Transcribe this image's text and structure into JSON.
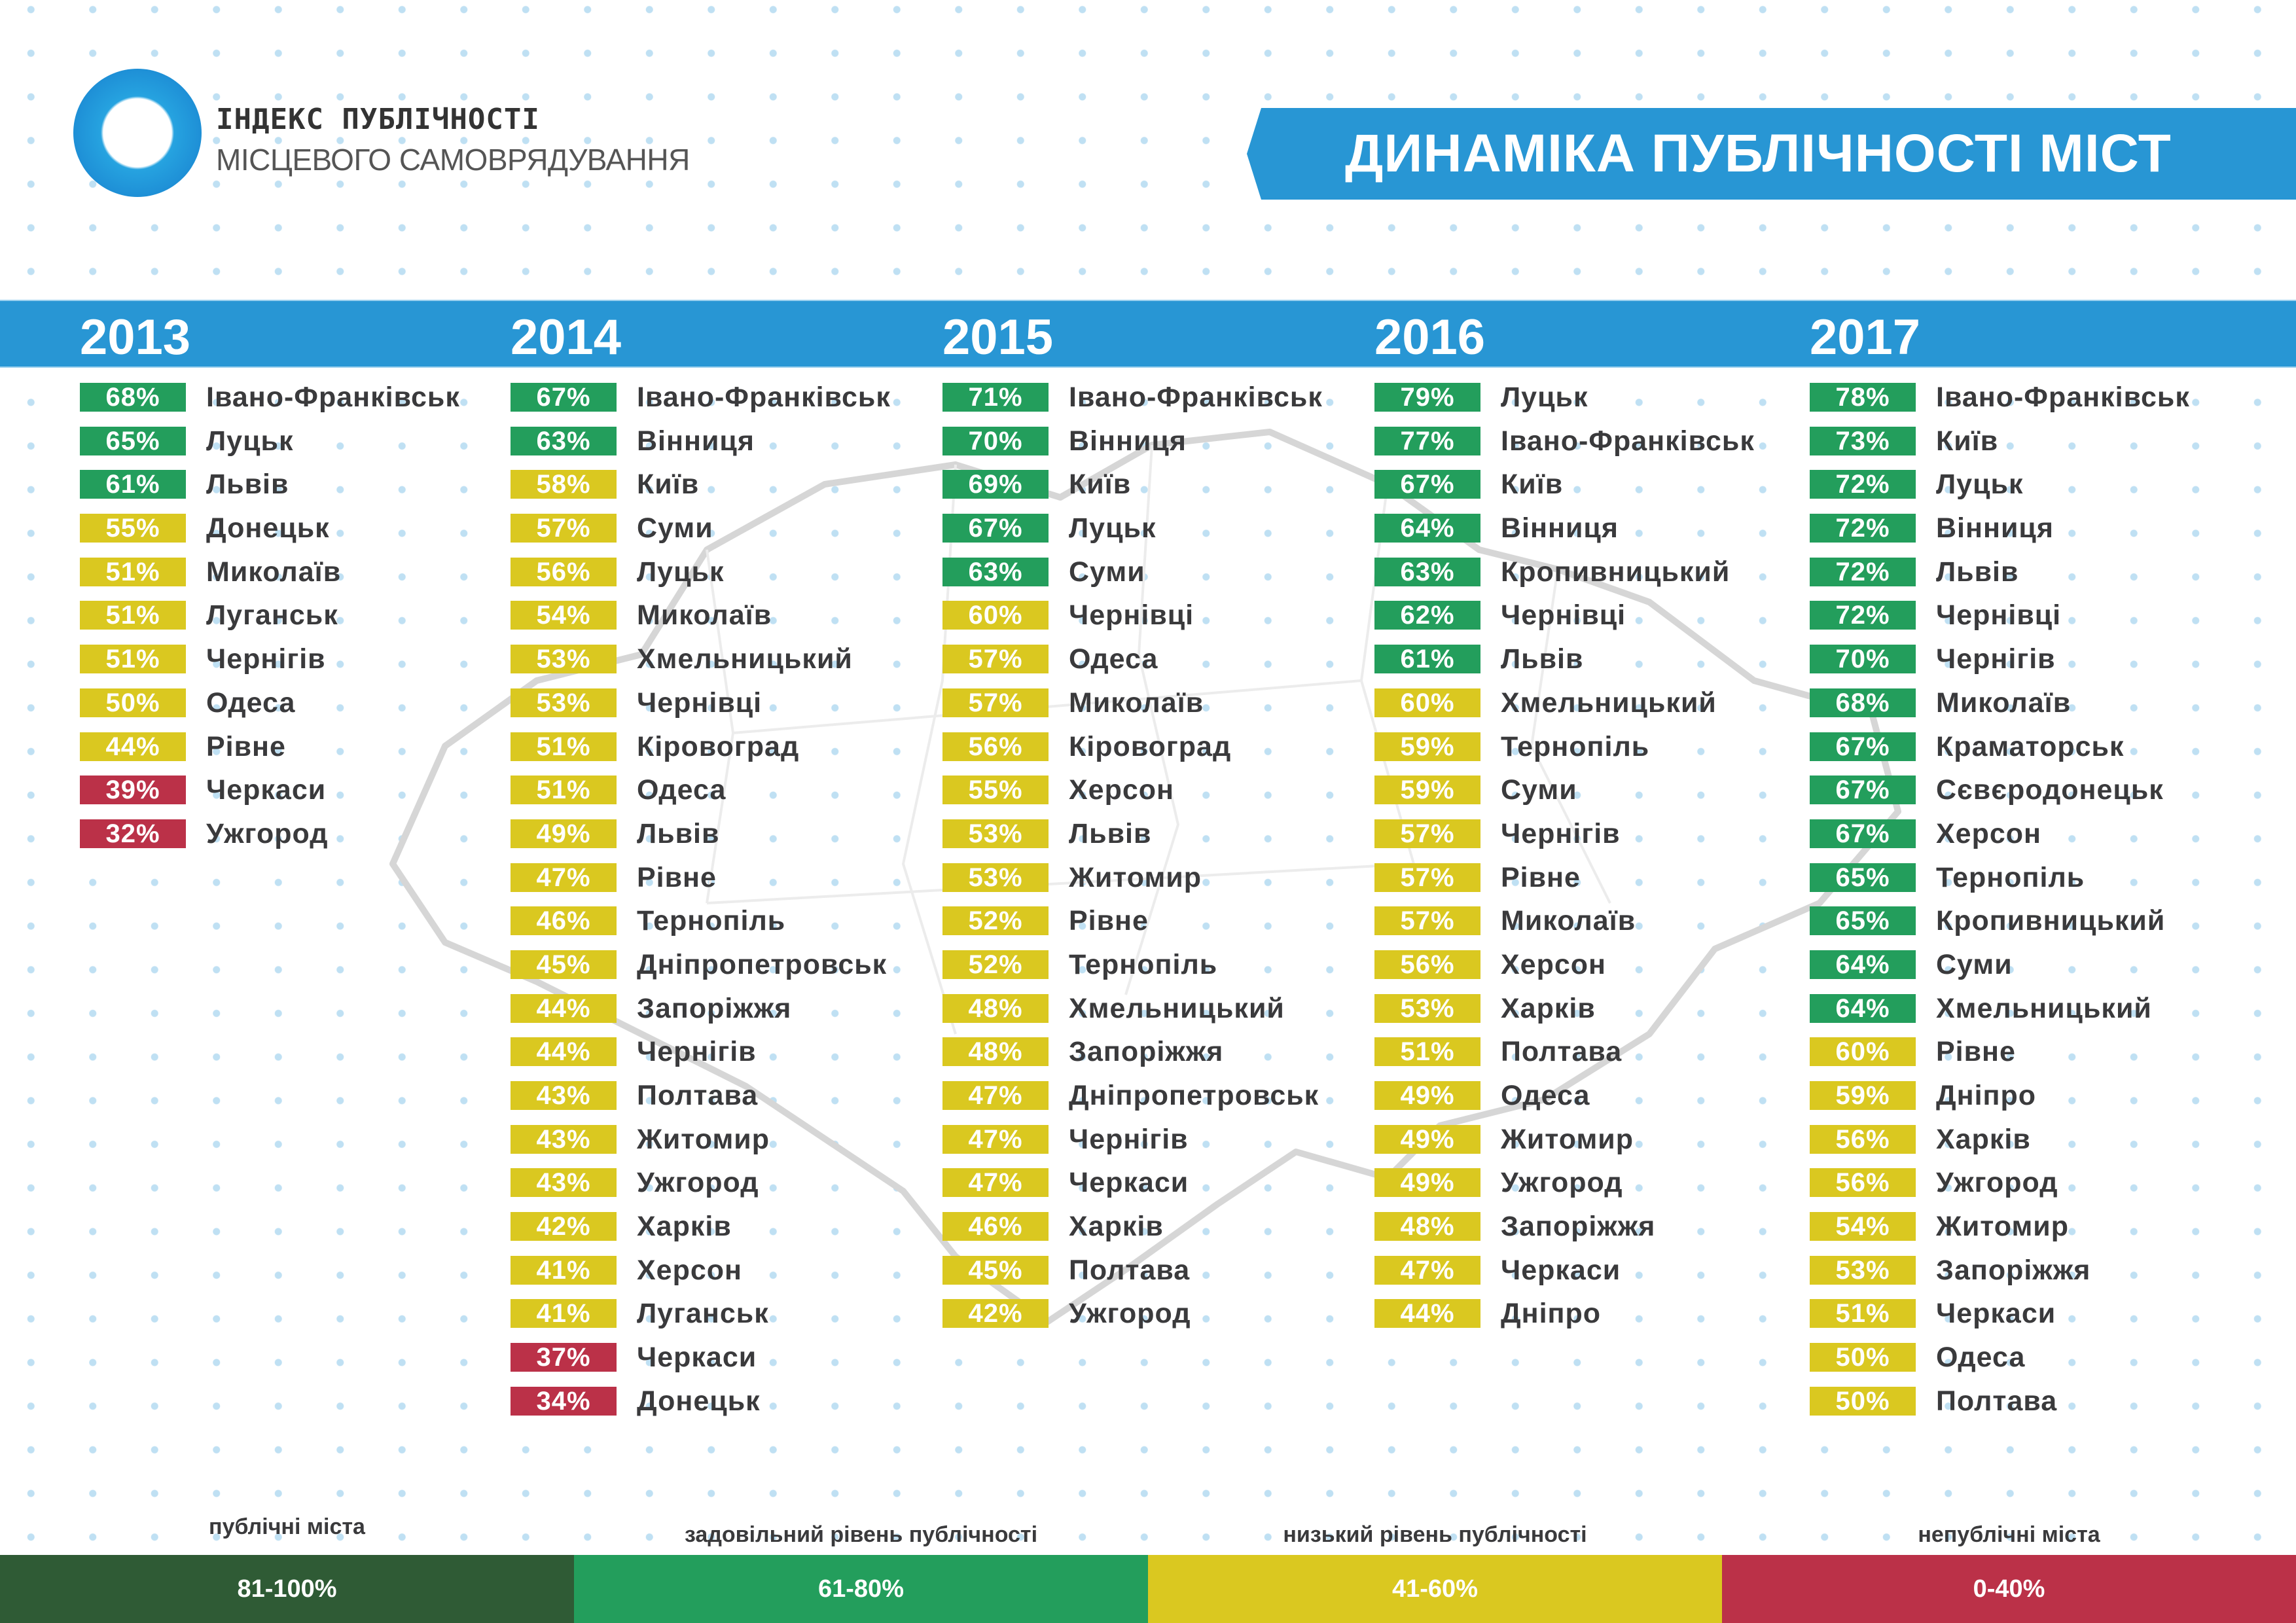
{
  "header": {
    "logo_title": "ІНДЕКС ПУБЛІЧНОСТІ",
    "logo_subtitle": "МІСЦЕВОГО САМОВРЯДУВАННЯ",
    "page_title": "ДИНАМІКА ПУБЛІЧНОСТІ МІСТ"
  },
  "colors": {
    "brand_blue": "#2896d4",
    "public": "#2f5b35",
    "satisfactory": "#239e5c",
    "low": "#dac820",
    "non_public": "#bb3148",
    "text": "#3a3a3c"
  },
  "years": [
    {
      "year": "2013",
      "rows": [
        {
          "pct": "68%",
          "city": "Івано-Франківськ",
          "level": "g"
        },
        {
          "pct": "65%",
          "city": "Луцьк",
          "level": "g"
        },
        {
          "pct": "61%",
          "city": "Львів",
          "level": "g"
        },
        {
          "pct": "55%",
          "city": "Донецьк",
          "level": "y"
        },
        {
          "pct": "51%",
          "city": "Миколаїв",
          "level": "y"
        },
        {
          "pct": "51%",
          "city": "Луганськ",
          "level": "y"
        },
        {
          "pct": "51%",
          "city": "Чернігів",
          "level": "y"
        },
        {
          "pct": "50%",
          "city": "Одеса",
          "level": "y"
        },
        {
          "pct": "44%",
          "city": "Рівне",
          "level": "y"
        },
        {
          "pct": "39%",
          "city": "Черкаси",
          "level": "r"
        },
        {
          "pct": "32%",
          "city": "Ужгород",
          "level": "r"
        }
      ]
    },
    {
      "year": "2014",
      "rows": [
        {
          "pct": "67%",
          "city": "Івано-Франківськ",
          "level": "g"
        },
        {
          "pct": "63%",
          "city": "Вінниця",
          "level": "g"
        },
        {
          "pct": "58%",
          "city": "Київ",
          "level": "y"
        },
        {
          "pct": "57%",
          "city": "Суми",
          "level": "y"
        },
        {
          "pct": "56%",
          "city": "Луцьк",
          "level": "y"
        },
        {
          "pct": "54%",
          "city": "Миколаїв",
          "level": "y"
        },
        {
          "pct": "53%",
          "city": "Хмельницький",
          "level": "y"
        },
        {
          "pct": "53%",
          "city": "Чернівці",
          "level": "y"
        },
        {
          "pct": "51%",
          "city": "Кіровоград",
          "level": "y"
        },
        {
          "pct": "51%",
          "city": "Одеса",
          "level": "y"
        },
        {
          "pct": "49%",
          "city": "Львів",
          "level": "y"
        },
        {
          "pct": "47%",
          "city": "Рівне",
          "level": "y"
        },
        {
          "pct": "46%",
          "city": "Тернопіль",
          "level": "y"
        },
        {
          "pct": "45%",
          "city": "Дніпропетровськ",
          "level": "y"
        },
        {
          "pct": "44%",
          "city": "Запоріжжя",
          "level": "y"
        },
        {
          "pct": "44%",
          "city": "Чернігів",
          "level": "y"
        },
        {
          "pct": "43%",
          "city": "Полтава",
          "level": "y"
        },
        {
          "pct": "43%",
          "city": "Житомир",
          "level": "y"
        },
        {
          "pct": "43%",
          "city": "Ужгород",
          "level": "y"
        },
        {
          "pct": "42%",
          "city": "Харків",
          "level": "y"
        },
        {
          "pct": "41%",
          "city": "Херсон",
          "level": "y"
        },
        {
          "pct": "41%",
          "city": "Луганськ",
          "level": "y"
        },
        {
          "pct": "37%",
          "city": "Черкаси",
          "level": "r"
        },
        {
          "pct": "34%",
          "city": "Донецьк",
          "level": "r"
        }
      ]
    },
    {
      "year": "2015",
      "rows": [
        {
          "pct": "71%",
          "city": "Івано-Франківськ",
          "level": "g"
        },
        {
          "pct": "70%",
          "city": "Вінниця",
          "level": "g"
        },
        {
          "pct": "69%",
          "city": "Київ",
          "level": "g"
        },
        {
          "pct": "67%",
          "city": "Луцьк",
          "level": "g"
        },
        {
          "pct": "63%",
          "city": "Суми",
          "level": "g"
        },
        {
          "pct": "60%",
          "city": "Чернівці",
          "level": "y"
        },
        {
          "pct": "57%",
          "city": "Одеса",
          "level": "y"
        },
        {
          "pct": "57%",
          "city": "Миколаїв",
          "level": "y"
        },
        {
          "pct": "56%",
          "city": "Кіровоград",
          "level": "y"
        },
        {
          "pct": "55%",
          "city": "Херсон",
          "level": "y"
        },
        {
          "pct": "53%",
          "city": "Львів",
          "level": "y"
        },
        {
          "pct": "53%",
          "city": "Житомир",
          "level": "y"
        },
        {
          "pct": "52%",
          "city": "Рівне",
          "level": "y"
        },
        {
          "pct": "52%",
          "city": "Тернопіль",
          "level": "y"
        },
        {
          "pct": "48%",
          "city": "Хмельницький",
          "level": "y"
        },
        {
          "pct": "48%",
          "city": "Запоріжжя",
          "level": "y"
        },
        {
          "pct": "47%",
          "city": "Дніпропетровськ",
          "level": "y"
        },
        {
          "pct": "47%",
          "city": "Чернігів",
          "level": "y"
        },
        {
          "pct": "47%",
          "city": "Черкаси",
          "level": "y"
        },
        {
          "pct": "46%",
          "city": "Харків",
          "level": "y"
        },
        {
          "pct": "45%",
          "city": "Полтава",
          "level": "y"
        },
        {
          "pct": "42%",
          "city": "Ужгород",
          "level": "y"
        }
      ]
    },
    {
      "year": "2016",
      "rows": [
        {
          "pct": "79%",
          "city": "Луцьк",
          "level": "g"
        },
        {
          "pct": "77%",
          "city": "Івано-Франківськ",
          "level": "g"
        },
        {
          "pct": "67%",
          "city": "Київ",
          "level": "g"
        },
        {
          "pct": "64%",
          "city": "Вінниця",
          "level": "g"
        },
        {
          "pct": "63%",
          "city": "Кропивницький",
          "level": "g"
        },
        {
          "pct": "62%",
          "city": "Чернівці",
          "level": "g"
        },
        {
          "pct": "61%",
          "city": "Львів",
          "level": "g"
        },
        {
          "pct": "60%",
          "city": "Хмельницький",
          "level": "y"
        },
        {
          "pct": "59%",
          "city": "Тернопіль",
          "level": "y"
        },
        {
          "pct": "59%",
          "city": "Суми",
          "level": "y"
        },
        {
          "pct": "57%",
          "city": "Чернігів",
          "level": "y"
        },
        {
          "pct": "57%",
          "city": "Рівне",
          "level": "y"
        },
        {
          "pct": "57%",
          "city": "Миколаїв",
          "level": "y"
        },
        {
          "pct": "56%",
          "city": "Херсон",
          "level": "y"
        },
        {
          "pct": "53%",
          "city": "Харків",
          "level": "y"
        },
        {
          "pct": "51%",
          "city": "Полтава",
          "level": "y"
        },
        {
          "pct": "49%",
          "city": "Одеса",
          "level": "y"
        },
        {
          "pct": "49%",
          "city": "Житомир",
          "level": "y"
        },
        {
          "pct": "49%",
          "city": "Ужгород",
          "level": "y"
        },
        {
          "pct": "48%",
          "city": "Запоріжжя",
          "level": "y"
        },
        {
          "pct": "47%",
          "city": "Черкаси",
          "level": "y"
        },
        {
          "pct": "44%",
          "city": "Дніпро",
          "level": "y"
        }
      ]
    },
    {
      "year": "2017",
      "rows": [
        {
          "pct": "78%",
          "city": "Івано-Франківськ",
          "level": "g"
        },
        {
          "pct": "73%",
          "city": "Київ",
          "level": "g"
        },
        {
          "pct": "72%",
          "city": "Луцьк",
          "level": "g"
        },
        {
          "pct": "72%",
          "city": "Вінниця",
          "level": "g"
        },
        {
          "pct": "72%",
          "city": "Львів",
          "level": "g"
        },
        {
          "pct": "72%",
          "city": "Чернівці",
          "level": "g"
        },
        {
          "pct": "70%",
          "city": "Чернігів",
          "level": "g"
        },
        {
          "pct": "68%",
          "city": "Миколаїв",
          "level": "g"
        },
        {
          "pct": "67%",
          "city": "Краматорськ",
          "level": "g"
        },
        {
          "pct": "67%",
          "city": "Сєвєродонецьк",
          "level": "g"
        },
        {
          "pct": "67%",
          "city": "Херсон",
          "level": "g"
        },
        {
          "pct": "65%",
          "city": "Тернопіль",
          "level": "g"
        },
        {
          "pct": "65%",
          "city": "Кропивницький",
          "level": "g"
        },
        {
          "pct": "64%",
          "city": "Суми",
          "level": "g"
        },
        {
          "pct": "64%",
          "city": "Хмельницький",
          "level": "g"
        },
        {
          "pct": "60%",
          "city": "Рівне",
          "level": "y"
        },
        {
          "pct": "59%",
          "city": "Дніпро",
          "level": "y"
        },
        {
          "pct": "56%",
          "city": "Харків",
          "level": "y"
        },
        {
          "pct": "56%",
          "city": "Ужгород",
          "level": "y"
        },
        {
          "pct": "54%",
          "city": "Житомир",
          "level": "y"
        },
        {
          "pct": "53%",
          "city": "Запоріжжя",
          "level": "y"
        },
        {
          "pct": "51%",
          "city": "Черкаси",
          "level": "y"
        },
        {
          "pct": "50%",
          "city": "Одеса",
          "level": "y"
        },
        {
          "pct": "50%",
          "city": "Полтава",
          "level": "y"
        }
      ]
    }
  ],
  "legend": [
    {
      "label": "публічні міста",
      "range": "81-100%",
      "color": "#2f5b35"
    },
    {
      "label": "задовільний рівень публічності",
      "range": "61-80%",
      "color": "#239e5c"
    },
    {
      "label": "низький рівень публічності",
      "range": "41-60%",
      "color": "#dac820"
    },
    {
      "label": "непублічні міста",
      "range": "0-40%",
      "color": "#bb3148"
    }
  ],
  "chart_data": {
    "type": "table",
    "title": "ДИНАМІКА ПУБЛІЧНОСТІ МІСТ",
    "subtitle": "ІНДЕКС ПУБЛІЧНОСТІ МІСЦЕВОГО САМОВРЯДУВАННЯ",
    "categories": [
      "2013",
      "2014",
      "2015",
      "2016",
      "2017"
    ],
    "unit": "%",
    "series": [
      {
        "name": "2013",
        "cities": [
          "Івано-Франківськ",
          "Луцьк",
          "Львів",
          "Донецьк",
          "Миколаїв",
          "Луганськ",
          "Чернігів",
          "Одеса",
          "Рівне",
          "Черкаси",
          "Ужгород"
        ],
        "values": [
          68,
          65,
          61,
          55,
          51,
          51,
          51,
          50,
          44,
          39,
          32
        ]
      },
      {
        "name": "2014",
        "cities": [
          "Івано-Франківськ",
          "Вінниця",
          "Київ",
          "Суми",
          "Луцьк",
          "Миколаїв",
          "Хмельницький",
          "Чернівці",
          "Кіровоград",
          "Одеса",
          "Львів",
          "Рівне",
          "Тернопіль",
          "Дніпропетровськ",
          "Запоріжжя",
          "Чернігів",
          "Полтава",
          "Житомир",
          "Ужгород",
          "Харків",
          "Херсон",
          "Луганськ",
          "Черкаси",
          "Донецьк"
        ],
        "values": [
          67,
          63,
          58,
          57,
          56,
          54,
          53,
          53,
          51,
          51,
          49,
          47,
          46,
          45,
          44,
          44,
          43,
          43,
          43,
          42,
          41,
          41,
          37,
          34
        ]
      },
      {
        "name": "2015",
        "cities": [
          "Івано-Франківськ",
          "Вінниця",
          "Київ",
          "Луцьк",
          "Суми",
          "Чернівці",
          "Одеса",
          "Миколаїв",
          "Кіровоград",
          "Херсон",
          "Львів",
          "Житомир",
          "Рівне",
          "Тернопіль",
          "Хмельницький",
          "Запоріжжя",
          "Дніпропетровськ",
          "Чернігів",
          "Черкаси",
          "Харків",
          "Полтава",
          "Ужгород"
        ],
        "values": [
          71,
          70,
          69,
          67,
          63,
          60,
          57,
          57,
          56,
          55,
          53,
          53,
          52,
          52,
          48,
          48,
          47,
          47,
          47,
          46,
          45,
          42
        ]
      },
      {
        "name": "2016",
        "cities": [
          "Луцьк",
          "Івано-Франківськ",
          "Київ",
          "Вінниця",
          "Кропивницький",
          "Чернівці",
          "Львів",
          "Хмельницький",
          "Тернопіль",
          "Суми",
          "Чернігів",
          "Рівне",
          "Миколаїв",
          "Херсон",
          "Харків",
          "Полтава",
          "Одеса",
          "Житомир",
          "Ужгород",
          "Запоріжжя",
          "Черкаси",
          "Дніпро"
        ],
        "values": [
          79,
          77,
          67,
          64,
          63,
          62,
          61,
          60,
          59,
          59,
          57,
          57,
          57,
          56,
          53,
          51,
          49,
          49,
          49,
          48,
          47,
          44
        ]
      },
      {
        "name": "2017",
        "cities": [
          "Івано-Франківськ",
          "Київ",
          "Луцьк",
          "Вінниця",
          "Львів",
          "Чернівці",
          "Чернігів",
          "Миколаїв",
          "Краматорськ",
          "Сєвєродонецьк",
          "Херсон",
          "Тернопіль",
          "Кропивницький",
          "Суми",
          "Хмельницький",
          "Рівне",
          "Дніпро",
          "Харків",
          "Ужгород",
          "Житомир",
          "Запоріжжя",
          "Черкаси",
          "Одеса",
          "Полтава"
        ],
        "values": [
          78,
          73,
          72,
          72,
          72,
          72,
          70,
          68,
          67,
          67,
          67,
          65,
          65,
          64,
          64,
          60,
          59,
          56,
          56,
          54,
          53,
          51,
          50,
          50
        ]
      }
    ],
    "legend": [
      {
        "label": "публічні міста",
        "range": "81-100%"
      },
      {
        "label": "задовільний рівень публічності",
        "range": "61-80%"
      },
      {
        "label": "низький рівень публічності",
        "range": "41-60%"
      },
      {
        "label": "непублічні міста",
        "range": "0-40%"
      }
    ],
    "legend_position": "bottom"
  }
}
